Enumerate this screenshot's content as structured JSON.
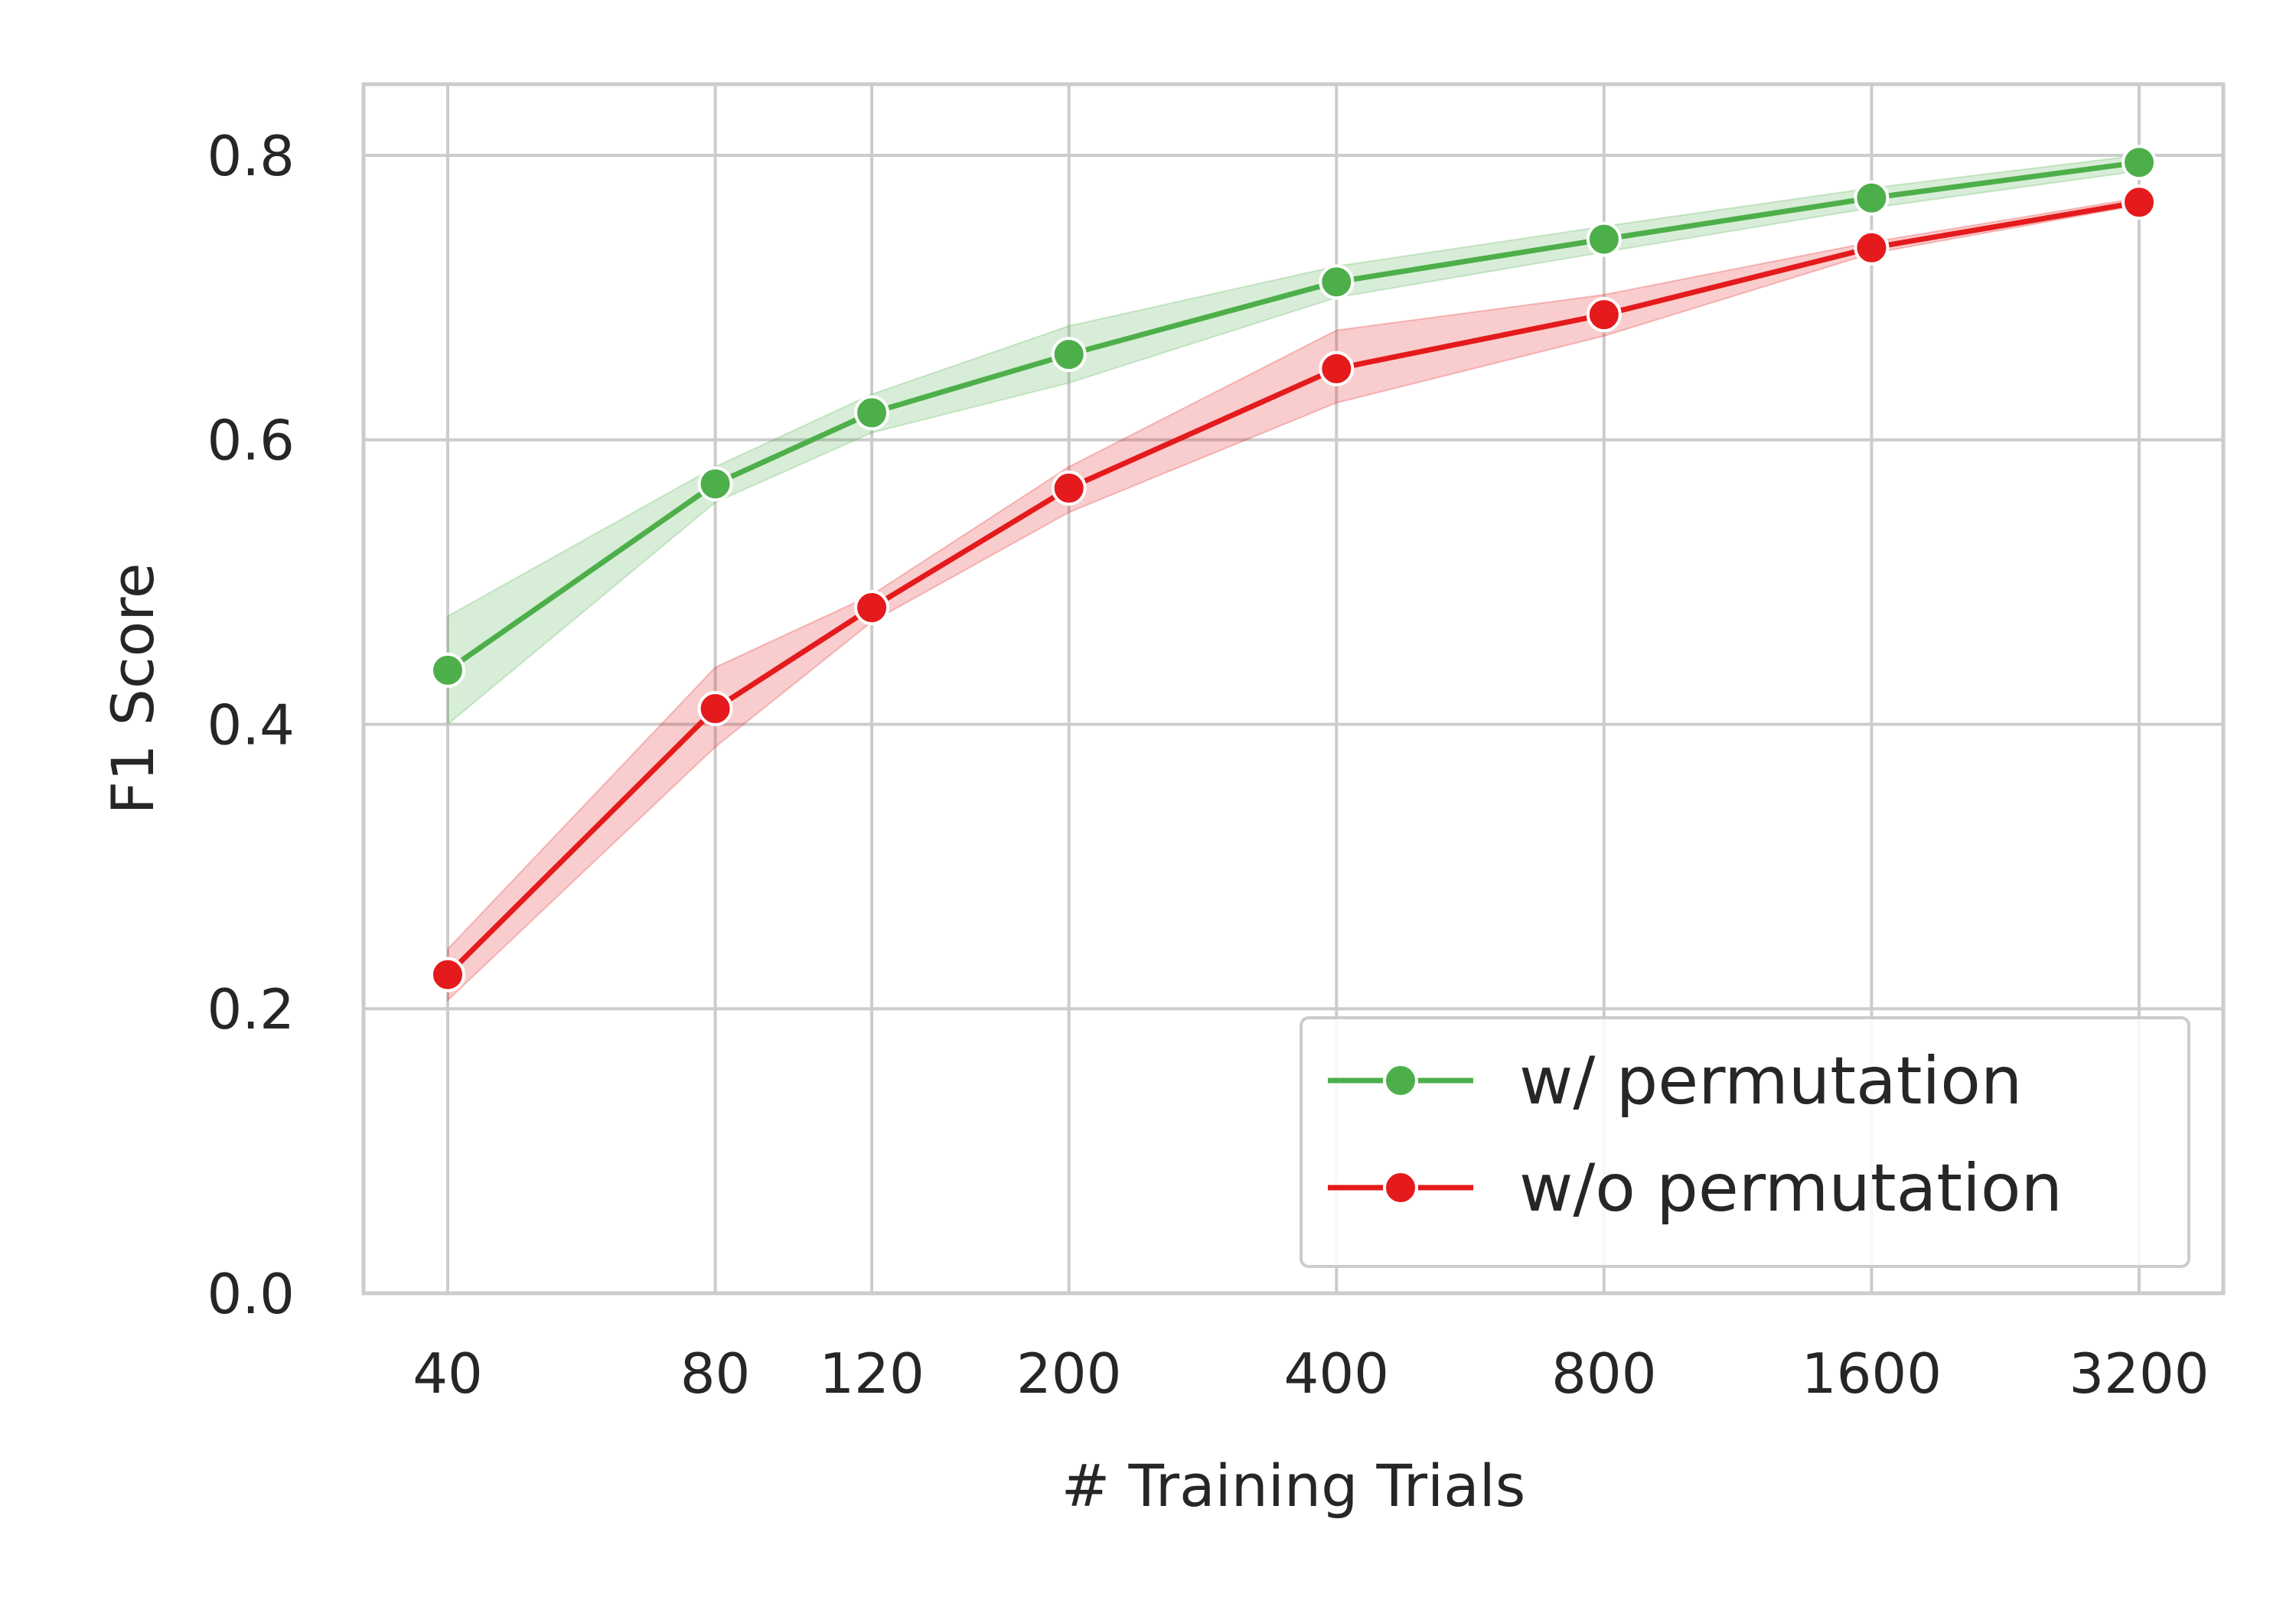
{
  "chart_data": {
    "type": "line",
    "title": "",
    "xlabel": "# Training Trials",
    "ylabel": "F1 Score",
    "x_scale": "log",
    "x": [
      40,
      80,
      120,
      200,
      400,
      800,
      1600,
      3200
    ],
    "x_tick_labels": [
      "40",
      "80",
      "120",
      "200",
      "400",
      "800",
      "1600",
      "3200"
    ],
    "ylim": [
      0.0,
      0.85
    ],
    "y_ticks": [
      0.0,
      0.2,
      0.4,
      0.6,
      0.8
    ],
    "y_tick_labels": [
      "0.0",
      "0.2",
      "0.4",
      "0.6",
      "0.8"
    ],
    "grid": true,
    "legend_position": "lower-right",
    "series": [
      {
        "name": "w/ permutation",
        "color": "#4daf4a",
        "values": [
          0.438,
          0.569,
          0.619,
          0.66,
          0.711,
          0.741,
          0.77,
          0.795
        ],
        "ci_low": [
          0.4,
          0.556,
          0.605,
          0.64,
          0.7,
          0.732,
          0.763,
          0.789
        ],
        "ci_high": [
          0.476,
          0.581,
          0.632,
          0.68,
          0.722,
          0.75,
          0.777,
          0.8
        ]
      },
      {
        "name": "w/o permutation",
        "color": "#e41a1c",
        "values": [
          0.224,
          0.411,
          0.482,
          0.566,
          0.65,
          0.688,
          0.735,
          0.767
        ],
        "ci_low": [
          0.206,
          0.384,
          0.472,
          0.549,
          0.626,
          0.673,
          0.731,
          0.765
        ],
        "ci_high": [
          0.242,
          0.44,
          0.491,
          0.581,
          0.677,
          0.702,
          0.739,
          0.77
        ]
      }
    ]
  }
}
